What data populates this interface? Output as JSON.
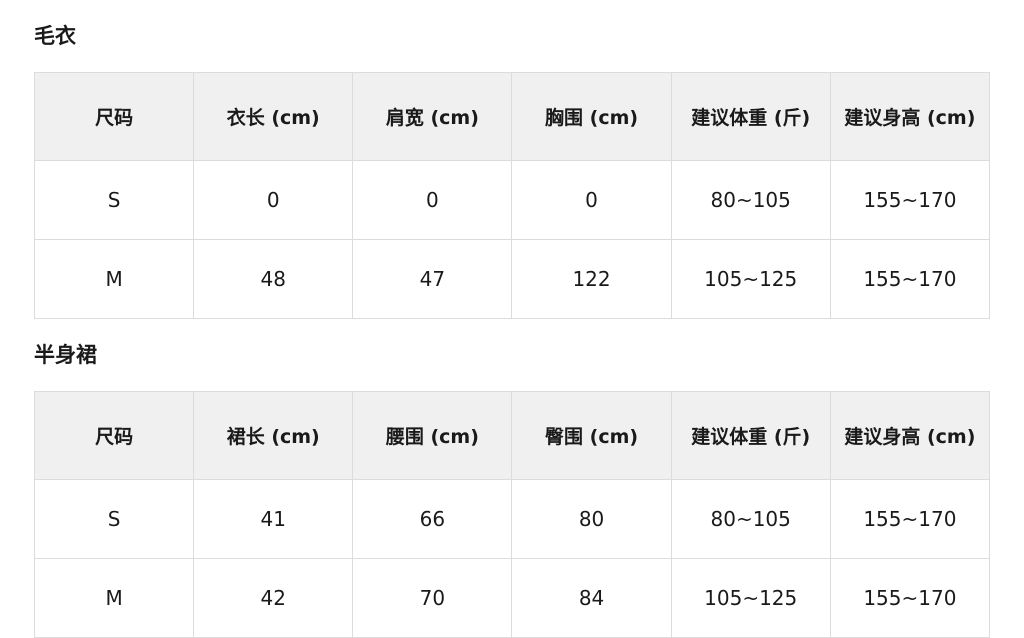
{
  "sections": [
    {
      "title": "毛衣",
      "headers": [
        "尺码",
        "衣长 (cm)",
        "肩宽 (cm)",
        "胸围 (cm)",
        "建议体重 (斤)",
        "建议身高 (cm)"
      ],
      "rows": [
        [
          "S",
          "0",
          "0",
          "0",
          "80~105",
          "155~170"
        ],
        [
          "M",
          "48",
          "47",
          "122",
          "105~125",
          "155~170"
        ]
      ]
    },
    {
      "title": "半身裙",
      "headers": [
        "尺码",
        "裙长 (cm)",
        "腰围 (cm)",
        "臀围 (cm)",
        "建议体重 (斤)",
        "建议身高 (cm)"
      ],
      "rows": [
        [
          "S",
          "41",
          "66",
          "80",
          "80~105",
          "155~170"
        ],
        [
          "M",
          "42",
          "70",
          "84",
          "105~125",
          "155~170"
        ]
      ]
    }
  ]
}
